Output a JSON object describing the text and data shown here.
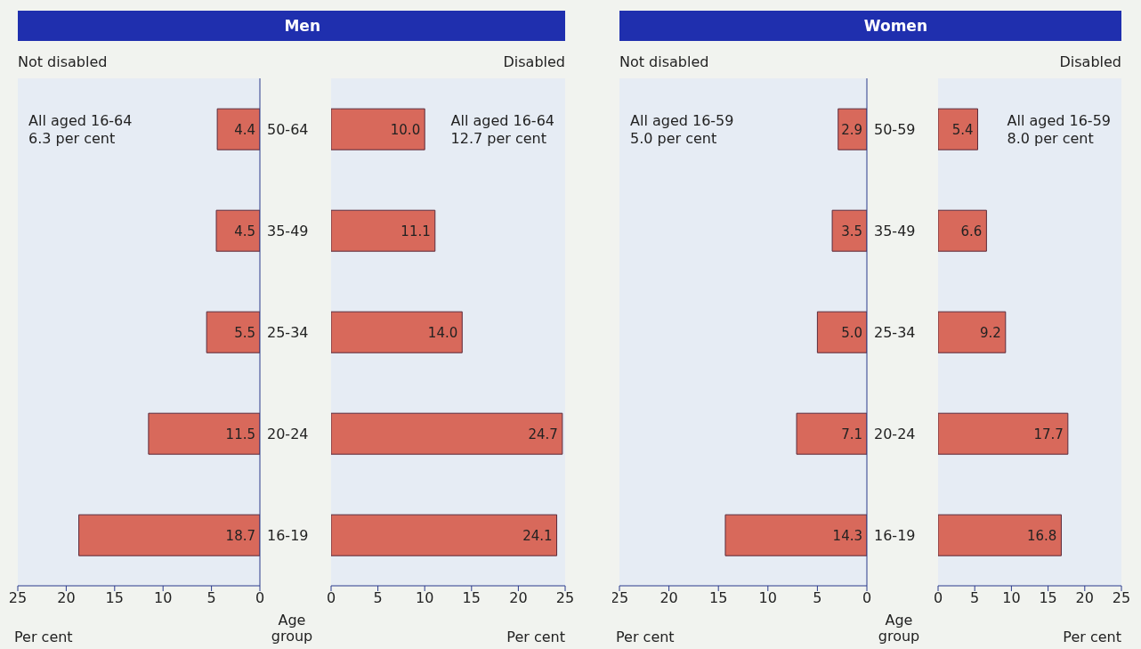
{
  "chart_data": [
    {
      "type": "bar",
      "orientation": "horizontal",
      "title": "Men",
      "subtitle": "Not disabled",
      "xlabel": "Per cent",
      "ylabel": "Age group",
      "categories": [
        "50-64",
        "35-49",
        "25-34",
        "20-24",
        "16-19"
      ],
      "values": [
        4.4,
        4.5,
        5.5,
        11.5,
        18.7
      ],
      "value_labels": [
        "4.4",
        "4.5",
        "5.5",
        "11.5",
        "18.7"
      ],
      "color": "#d8695b",
      "xlim": [
        25,
        0
      ],
      "xticks": [
        25,
        20,
        15,
        10,
        5,
        0
      ],
      "annotations": [
        "All aged 16-64\n6.3 per cent"
      ]
    },
    {
      "type": "bar",
      "orientation": "horizontal",
      "subtitle": "Disabled",
      "xlabel": "Per cent",
      "categories": [
        null,
        null,
        null,
        null,
        null
      ],
      "values": [
        10.0,
        11.1,
        14.0,
        24.7,
        24.1
      ],
      "value_labels": [
        "10.0",
        "11.1",
        "14.0",
        "24.7",
        "24.1"
      ],
      "color": "#d8695b",
      "xlim": [
        0,
        25
      ],
      "xticks": [
        0,
        5,
        10,
        15,
        20,
        25
      ],
      "annotations": [
        "All aged 16-64\n12.7 per cent"
      ]
    },
    {
      "type": "bar",
      "orientation": "horizontal",
      "title": "Women",
      "subtitle": "Not disabled",
      "xlabel": "Per cent",
      "ylabel": "Age group",
      "categories": [
        "50-59",
        "35-49",
        "25-34",
        "20-24",
        "16-19"
      ],
      "values": [
        2.9,
        3.5,
        5.0,
        7.1,
        14.3
      ],
      "value_labels": [
        "2.9",
        "3.5",
        "5.0",
        "7.1",
        "14.3"
      ],
      "color": "#d8695b",
      "xlim": [
        25,
        0
      ],
      "xticks": [
        25,
        20,
        15,
        10,
        5,
        0
      ],
      "annotations": [
        "All aged 16-59\n5.0 per cent"
      ]
    },
    {
      "type": "bar",
      "orientation": "horizontal",
      "subtitle": "Disabled",
      "xlabel": "Per cent",
      "categories": [
        null,
        null,
        null,
        null,
        null
      ],
      "values": [
        5.4,
        6.6,
        9.2,
        17.7,
        16.8
      ],
      "value_labels": [
        "5.4",
        "6.6",
        "9.2",
        "17.7",
        "16.8"
      ],
      "color": "#d8695b",
      "xlim": [
        0,
        25
      ],
      "xticks": [
        0,
        5,
        10,
        15,
        20,
        25
      ],
      "annotations": [
        "All aged 16-59\n8.0 per cent"
      ]
    }
  ]
}
